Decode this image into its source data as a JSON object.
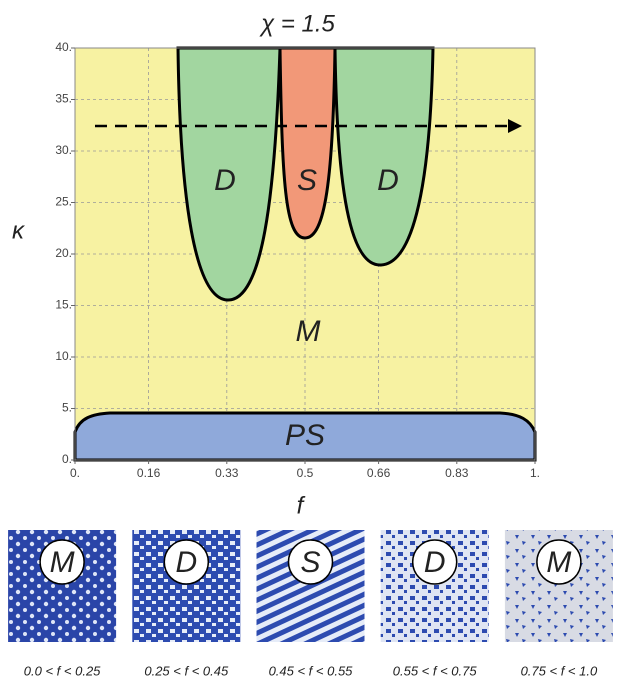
{
  "chart_data": {
    "type": "phase-diagram",
    "title": "χ = 1.5",
    "x_label": "f",
    "y_label": "κ",
    "xlim": [
      0,
      1
    ],
    "ylim": [
      0,
      40
    ],
    "xticks": [
      {
        "value": 0,
        "label": "0."
      },
      0.16,
      0.33,
      0.5,
      0.66,
      0.83,
      {
        "value": 1,
        "label": "1."
      }
    ],
    "yticks": [
      {
        "value": 0,
        "label": "0."
      },
      {
        "value": 5,
        "label": "5."
      },
      {
        "value": 10,
        "label": "10."
      },
      {
        "value": 15,
        "label": "15."
      },
      {
        "value": 20,
        "label": "20."
      },
      {
        "value": 25,
        "label": "25."
      },
      {
        "value": 30,
        "label": "30."
      },
      {
        "value": 35,
        "label": "35."
      },
      {
        "value": 40,
        "label": "40."
      }
    ],
    "regions": [
      "D",
      "S",
      "D",
      "M",
      "PS"
    ],
    "grid": true
  },
  "panels": [
    {
      "label": "M",
      "range": "0.0 < f < 0.25"
    },
    {
      "label": "D",
      "range": "0.25 < f < 0.45"
    },
    {
      "label": "S",
      "range": "0.45 < f < 0.55"
    },
    {
      "label": "D",
      "range": "0.55 < f < 0.75"
    },
    {
      "label": "M",
      "range": "0.75 < f < 1.0"
    }
  ]
}
